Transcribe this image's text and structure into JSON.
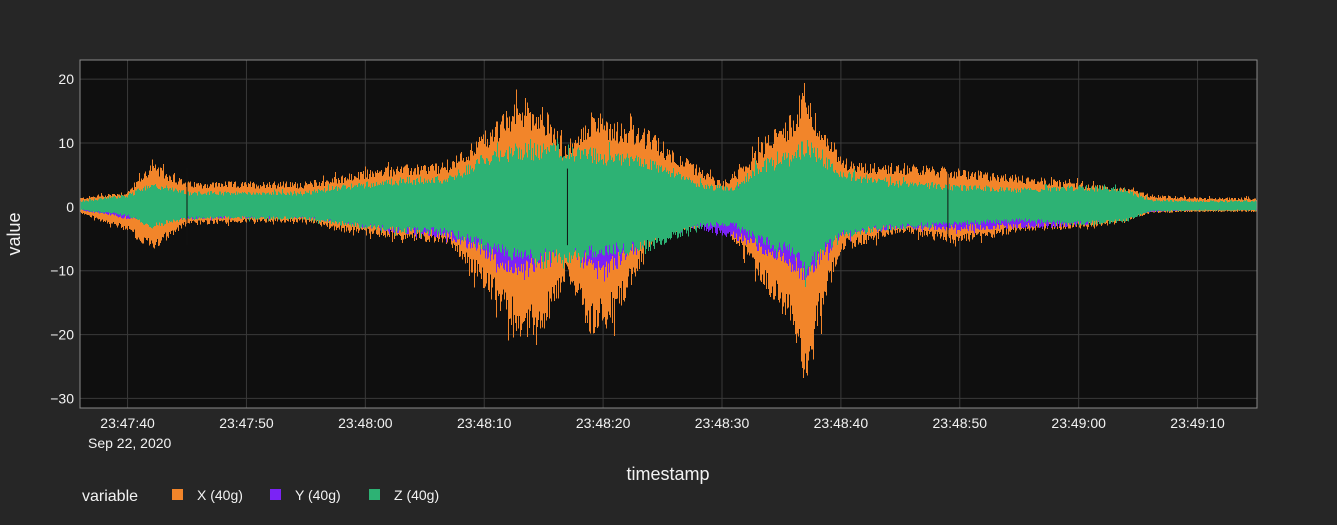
{
  "chart_data": {
    "type": "area",
    "xlabel": "timestamp",
    "ylabel": "value",
    "date_label": "Sep 22, 2020",
    "x_range": [
      "23:47:36",
      "23:49:15"
    ],
    "ylim": [
      -31.5,
      23
    ],
    "x_ticks": [
      "23:47:40",
      "23:47:50",
      "23:48:00",
      "23:48:10",
      "23:48:20",
      "23:48:30",
      "23:48:40",
      "23:48:50",
      "23:49:00",
      "23:49:10"
    ],
    "y_ticks": [
      20,
      10,
      0,
      -10,
      -20,
      -30
    ],
    "y_tick_labels": [
      "20",
      "10",
      "0",
      "−10",
      "−20",
      "−30"
    ],
    "grid": true,
    "plot_background": "#0f0f0f",
    "legend": {
      "title": "variable",
      "placement": "bottom-left",
      "entries": [
        {
          "name": "X (40g)",
          "color": "#f2852a"
        },
        {
          "name": "Y (40g)",
          "color": "#7b23f5"
        },
        {
          "name": "Z (40g)",
          "color": "#2db274"
        }
      ]
    },
    "series": [
      {
        "name": "X (40g)",
        "color": "#f2852a",
        "x": [
          "23:47:36",
          "23:47:40",
          "23:47:42",
          "23:47:45",
          "23:47:50",
          "23:47:55",
          "23:47:58",
          "23:48:02",
          "23:48:07",
          "23:48:10",
          "23:48:13",
          "23:48:15",
          "23:48:17",
          "23:48:19",
          "23:48:21",
          "23:48:24",
          "23:48:26",
          "23:48:30",
          "23:48:32",
          "23:48:34",
          "23:48:36",
          "23:48:37",
          "23:48:38",
          "23:48:40",
          "23:48:42",
          "23:48:45",
          "23:48:50",
          "23:48:55",
          "23:49:00",
          "23:49:04",
          "23:49:06",
          "23:49:10",
          "23:49:15"
        ],
        "upper": [
          1.5,
          2.5,
          7,
          4,
          4,
          4,
          5,
          6.5,
          7,
          12,
          17,
          16,
          9,
          15,
          14,
          12,
          9,
          4,
          7,
          12,
          15,
          20,
          14,
          8,
          7,
          7,
          6,
          5,
          4,
          3,
          2,
          1.5,
          1.5
        ],
        "lower": [
          -1,
          -4,
          -7,
          -3,
          -2.5,
          -2.5,
          -4,
          -5,
          -6,
          -13,
          -21,
          -20,
          -11,
          -21,
          -18,
          -6,
          -4,
          -3,
          -8,
          -14,
          -20,
          -28,
          -20,
          -7,
          -6,
          -4,
          -6,
          -4,
          -3.5,
          -2.5,
          -1,
          -0.8,
          -0.8
        ]
      },
      {
        "name": "Y (40g)",
        "color": "#7b23f5",
        "x": [
          "23:47:36",
          "23:47:40",
          "23:47:45",
          "23:47:50",
          "23:47:55",
          "23:47:58",
          "23:48:02",
          "23:48:07",
          "23:48:10",
          "23:48:13",
          "23:48:17",
          "23:48:20",
          "23:48:24",
          "23:48:28",
          "23:48:32",
          "23:48:35",
          "23:48:37",
          "23:48:40",
          "23:48:45",
          "23:48:50",
          "23:48:55",
          "23:49:00",
          "23:49:05",
          "23:49:10",
          "23:49:15"
        ],
        "upper": [
          0.6,
          1,
          1,
          1,
          1,
          1.5,
          2,
          2,
          3,
          4,
          4,
          4,
          3,
          2,
          3,
          4,
          5,
          3,
          2,
          2,
          1.5,
          1,
          0.8,
          0.6,
          0.6
        ],
        "lower": [
          -0.5,
          -2,
          -2,
          -1.8,
          -1.8,
          -2.8,
          -4,
          -5,
          -8,
          -12,
          -7,
          -12,
          -5,
          -3.5,
          -6,
          -9,
          -12,
          -5,
          -3.5,
          -3.8,
          -3.5,
          -3.2,
          -1,
          -0.5,
          -0.5
        ]
      },
      {
        "name": "Z (40g)",
        "color": "#2db274",
        "x": [
          "23:47:36",
          "23:47:40",
          "23:47:42",
          "23:47:45",
          "23:47:50",
          "23:47:55",
          "23:47:58",
          "23:48:02",
          "23:48:07",
          "23:48:10",
          "23:48:13",
          "23:48:17",
          "23:48:20",
          "23:48:24",
          "23:48:28",
          "23:48:31",
          "23:48:33",
          "23:48:36",
          "23:48:37",
          "23:48:40",
          "23:48:43",
          "23:48:46",
          "23:48:50",
          "23:48:55",
          "23:49:00",
          "23:49:04",
          "23:49:06",
          "23:49:10",
          "23:49:15"
        ],
        "upper": [
          1,
          2,
          4,
          2.5,
          2.5,
          2.5,
          3.5,
          4.5,
          5,
          8.5,
          10,
          10,
          9,
          8,
          4,
          3,
          7,
          9,
          11,
          6,
          4.5,
          4,
          3.5,
          3,
          3.5,
          3,
          1.2,
          1,
          1
        ],
        "lower": [
          -0.5,
          -1.5,
          -3.5,
          -2,
          -2,
          -2,
          -3,
          -4,
          -4.5,
          -7,
          -9,
          -9,
          -8,
          -7,
          -3.5,
          -3,
          -6,
          -8,
          -11,
          -5,
          -4,
          -3.5,
          -3,
          -2.5,
          -3,
          -2.5,
          -0.8,
          -0.6,
          -0.6
        ]
      }
    ]
  }
}
